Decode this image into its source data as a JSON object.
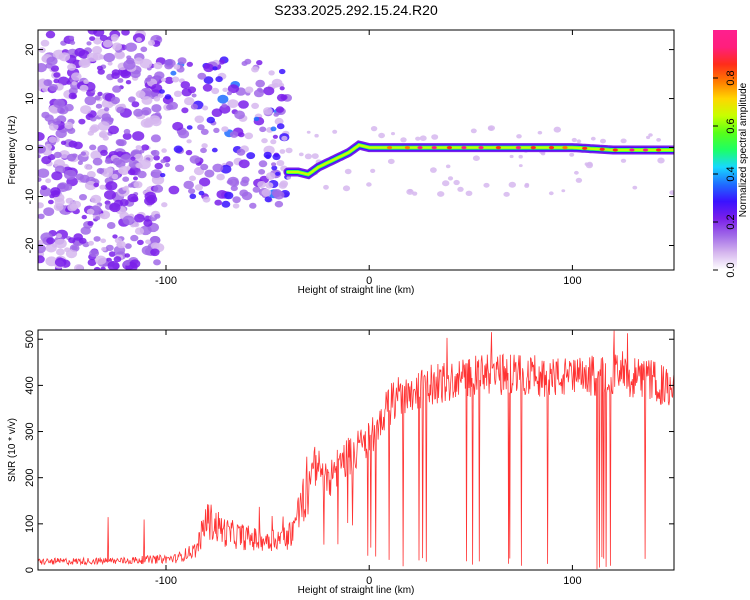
{
  "title": "S233.2025.292.15.24.R20",
  "chart_data": [
    {
      "type": "heatmap",
      "xlabel": "Height of straight line (km)",
      "ylabel": "Frequency (Hz)",
      "xlim": [
        -163,
        150
      ],
      "ylim": [
        -25,
        24
      ],
      "x_ticks": [
        -100,
        0,
        100
      ],
      "y_ticks": [
        -20,
        -10,
        0,
        10,
        20
      ],
      "colorbar": {
        "label": "Normalized spectral amplitude",
        "range": [
          0,
          1
        ],
        "ticks": [
          "0.0",
          "0.2",
          "0.4",
          "0.6",
          "0.8"
        ],
        "tick_values": [
          0.0,
          0.2,
          0.4,
          0.6,
          0.8
        ],
        "colors": [
          "#ffffff",
          "#d6b7ee",
          "#a16ae8",
          "#7a1fea",
          "#3a12ff",
          "#1f6dff",
          "#17d8ff",
          "#1cff66",
          "#58ff18",
          "#c7ff00",
          "#ffd600",
          "#ff7a00",
          "#ff2d1a",
          "#ff1f7c",
          "#ff1f8f"
        ]
      },
      "ridge": [
        {
          "x": -40,
          "y": -5
        },
        {
          "x": -35,
          "y": -5
        },
        {
          "x": -30,
          "y": -5.5
        },
        {
          "x": -25,
          "y": -4
        },
        {
          "x": -20,
          "y": -3
        },
        {
          "x": -15,
          "y": -2
        },
        {
          "x": -10,
          "y": -1
        },
        {
          "x": -5,
          "y": 0.5
        },
        {
          "x": 0,
          "y": 0
        },
        {
          "x": 10,
          "y": 0
        },
        {
          "x": 20,
          "y": 0
        },
        {
          "x": 40,
          "y": 0
        },
        {
          "x": 60,
          "y": 0
        },
        {
          "x": 80,
          "y": 0
        },
        {
          "x": 100,
          "y": 0
        },
        {
          "x": 120,
          "y": -0.5
        },
        {
          "x": 150,
          "y": -0.5
        }
      ]
    },
    {
      "type": "line",
      "xlabel": "Height of straight line (km)",
      "ylabel": "SNR (10 * v/v)",
      "xlim": [
        -163,
        150
      ],
      "ylim": [
        0,
        520
      ],
      "x_ticks": [
        -100,
        0,
        100
      ],
      "y_ticks": [
        0,
        100,
        200,
        300,
        400,
        500
      ],
      "color": "#ff3333",
      "envelope": [
        {
          "x": -163,
          "y": 18
        },
        {
          "x": -120,
          "y": 20
        },
        {
          "x": -95,
          "y": 25
        },
        {
          "x": -85,
          "y": 45
        },
        {
          "x": -80,
          "y": 110
        },
        {
          "x": -70,
          "y": 80
        },
        {
          "x": -55,
          "y": 65
        },
        {
          "x": -40,
          "y": 70
        },
        {
          "x": -33,
          "y": 140
        },
        {
          "x": -28,
          "y": 230
        },
        {
          "x": -20,
          "y": 200
        },
        {
          "x": -10,
          "y": 250
        },
        {
          "x": 0,
          "y": 280
        },
        {
          "x": 5,
          "y": 330
        },
        {
          "x": 15,
          "y": 380
        },
        {
          "x": 30,
          "y": 400
        },
        {
          "x": 50,
          "y": 420
        },
        {
          "x": 70,
          "y": 425
        },
        {
          "x": 100,
          "y": 415
        },
        {
          "x": 120,
          "y": 425
        },
        {
          "x": 140,
          "y": 410
        },
        {
          "x": 150,
          "y": 385
        }
      ]
    }
  ]
}
